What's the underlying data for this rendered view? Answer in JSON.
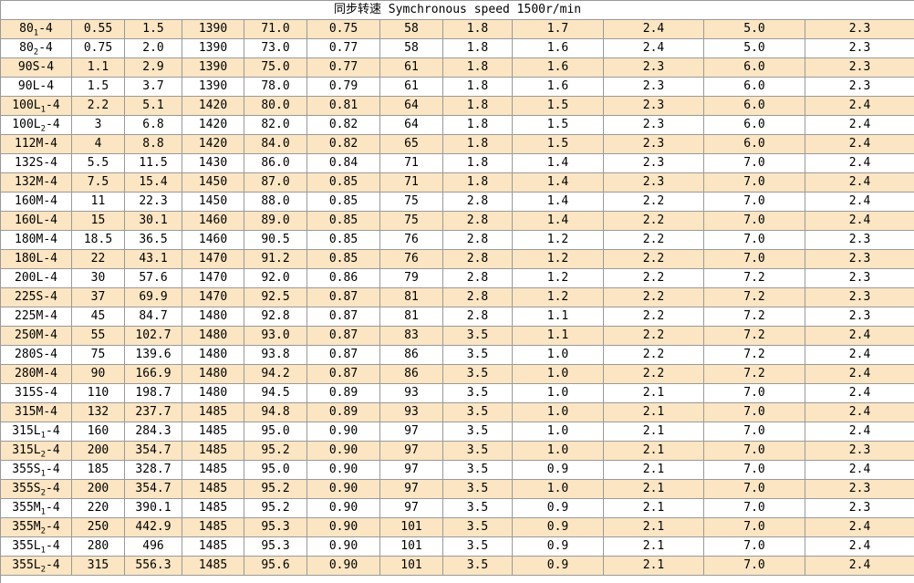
{
  "title": "同步转速 Symchronous speed 1500r/min",
  "colors": {
    "row_highlight": "#fbe5c2",
    "row_plain": "#ffffff",
    "grid_border": "#9a9a9a",
    "text": "#000000"
  },
  "table": {
    "rows": [
      {
        "model": {
          "base": "80",
          "sub": "1",
          "rest": "-4"
        },
        "values": [
          "0.55",
          "1.5",
          "1390",
          "71.0",
          "0.75",
          "58",
          "1.8",
          "1.7",
          "2.4",
          "5.0",
          "2.3"
        ]
      },
      {
        "model": {
          "base": "80",
          "sub": "2",
          "rest": "-4"
        },
        "values": [
          "0.75",
          "2.0",
          "1390",
          "73.0",
          "0.77",
          "58",
          "1.8",
          "1.6",
          "2.4",
          "5.0",
          "2.3"
        ]
      },
      {
        "model": {
          "base": "90S",
          "sub": "",
          "rest": "-4"
        },
        "values": [
          "1.1",
          "2.9",
          "1390",
          "75.0",
          "0.77",
          "61",
          "1.8",
          "1.6",
          "2.3",
          "6.0",
          "2.3"
        ]
      },
      {
        "model": {
          "base": "90L",
          "sub": "",
          "rest": "-4"
        },
        "values": [
          "1.5",
          "3.7",
          "1390",
          "78.0",
          "0.79",
          "61",
          "1.8",
          "1.6",
          "2.3",
          "6.0",
          "2.3"
        ]
      },
      {
        "model": {
          "base": "100L",
          "sub": "1",
          "rest": "-4"
        },
        "values": [
          "2.2",
          "5.1",
          "1420",
          "80.0",
          "0.81",
          "64",
          "1.8",
          "1.5",
          "2.3",
          "6.0",
          "2.4"
        ]
      },
      {
        "model": {
          "base": "100L",
          "sub": "2",
          "rest": "-4"
        },
        "values": [
          "3",
          "6.8",
          "1420",
          "82.0",
          "0.82",
          "64",
          "1.8",
          "1.5",
          "2.3",
          "6.0",
          "2.4"
        ]
      },
      {
        "model": {
          "base": "112M",
          "sub": "",
          "rest": "-4"
        },
        "values": [
          "4",
          "8.8",
          "1420",
          "84.0",
          "0.82",
          "65",
          "1.8",
          "1.5",
          "2.3",
          "6.0",
          "2.4"
        ]
      },
      {
        "model": {
          "base": "132S",
          "sub": "",
          "rest": "-4"
        },
        "values": [
          "5.5",
          "11.5",
          "1430",
          "86.0",
          "0.84",
          "71",
          "1.8",
          "1.4",
          "2.3",
          "7.0",
          "2.4"
        ]
      },
      {
        "model": {
          "base": "132M",
          "sub": "",
          "rest": "-4"
        },
        "values": [
          "7.5",
          "15.4",
          "1450",
          "87.0",
          "0.85",
          "71",
          "1.8",
          "1.4",
          "2.3",
          "7.0",
          "2.4"
        ]
      },
      {
        "model": {
          "base": "160M",
          "sub": "",
          "rest": "-4"
        },
        "values": [
          "11",
          "22.3",
          "1450",
          "88.0",
          "0.85",
          "75",
          "2.8",
          "1.4",
          "2.2",
          "7.0",
          "2.4"
        ]
      },
      {
        "model": {
          "base": "160L",
          "sub": "",
          "rest": "-4"
        },
        "values": [
          "15",
          "30.1",
          "1460",
          "89.0",
          "0.85",
          "75",
          "2.8",
          "1.4",
          "2.2",
          "7.0",
          "2.4"
        ]
      },
      {
        "model": {
          "base": "180M",
          "sub": "",
          "rest": "-4"
        },
        "values": [
          "18.5",
          "36.5",
          "1460",
          "90.5",
          "0.85",
          "76",
          "2.8",
          "1.2",
          "2.2",
          "7.0",
          "2.3"
        ]
      },
      {
        "model": {
          "base": "180L",
          "sub": "",
          "rest": "-4"
        },
        "values": [
          "22",
          "43.1",
          "1470",
          "91.2",
          "0.85",
          "76",
          "2.8",
          "1.2",
          "2.2",
          "7.0",
          "2.3"
        ]
      },
      {
        "model": {
          "base": "200L",
          "sub": "",
          "rest": "-4"
        },
        "values": [
          "30",
          "57.6",
          "1470",
          "92.0",
          "0.86",
          "79",
          "2.8",
          "1.2",
          "2.2",
          "7.2",
          "2.3"
        ]
      },
      {
        "model": {
          "base": "225S",
          "sub": "",
          "rest": "-4"
        },
        "values": [
          "37",
          "69.9",
          "1470",
          "92.5",
          "0.87",
          "81",
          "2.8",
          "1.2",
          "2.2",
          "7.2",
          "2.3"
        ]
      },
      {
        "model": {
          "base": "225M",
          "sub": "",
          "rest": "-4"
        },
        "values": [
          "45",
          "84.7",
          "1480",
          "92.8",
          "0.87",
          "81",
          "2.8",
          "1.1",
          "2.2",
          "7.2",
          "2.3"
        ]
      },
      {
        "model": {
          "base": "250M",
          "sub": "",
          "rest": "-4"
        },
        "values": [
          "55",
          "102.7",
          "1480",
          "93.0",
          "0.87",
          "83",
          "3.5",
          "1.1",
          "2.2",
          "7.2",
          "2.4"
        ]
      },
      {
        "model": {
          "base": "280S",
          "sub": "",
          "rest": "-4"
        },
        "values": [
          "75",
          "139.6",
          "1480",
          "93.8",
          "0.87",
          "86",
          "3.5",
          "1.0",
          "2.2",
          "7.2",
          "2.4"
        ]
      },
      {
        "model": {
          "base": "280M",
          "sub": "",
          "rest": "-4"
        },
        "values": [
          "90",
          "166.9",
          "1480",
          "94.2",
          "0.87",
          "86",
          "3.5",
          "1.0",
          "2.2",
          "7.2",
          "2.4"
        ]
      },
      {
        "model": {
          "base": "315S",
          "sub": "",
          "rest": "-4"
        },
        "values": [
          "110",
          "198.7",
          "1480",
          "94.5",
          "0.89",
          "93",
          "3.5",
          "1.0",
          "2.1",
          "7.0",
          "2.4"
        ]
      },
      {
        "model": {
          "base": "315M",
          "sub": "",
          "rest": "-4"
        },
        "values": [
          "132",
          "237.7",
          "1485",
          "94.8",
          "0.89",
          "93",
          "3.5",
          "1.0",
          "2.1",
          "7.0",
          "2.4"
        ]
      },
      {
        "model": {
          "base": "315L",
          "sub": "1",
          "rest": "-4"
        },
        "values": [
          "160",
          "284.3",
          "1485",
          "95.0",
          "0.90",
          "97",
          "3.5",
          "1.0",
          "2.1",
          "7.0",
          "2.4"
        ]
      },
      {
        "model": {
          "base": "315L",
          "sub": "2",
          "rest": "-4"
        },
        "values": [
          "200",
          "354.7",
          "1485",
          "95.2",
          "0.90",
          "97",
          "3.5",
          "1.0",
          "2.1",
          "7.0",
          "2.3"
        ]
      },
      {
        "model": {
          "base": "355S",
          "sub": "1",
          "rest": "-4"
        },
        "values": [
          "185",
          "328.7",
          "1485",
          "95.0",
          "0.90",
          "97",
          "3.5",
          "0.9",
          "2.1",
          "7.0",
          "2.4"
        ]
      },
      {
        "model": {
          "base": "355S",
          "sub": "2",
          "rest": "-4"
        },
        "values": [
          "200",
          "354.7",
          "1485",
          "95.2",
          "0.90",
          "97",
          "3.5",
          "1.0",
          "2.1",
          "7.0",
          "2.3"
        ]
      },
      {
        "model": {
          "base": "355M",
          "sub": "1",
          "rest": "-4"
        },
        "values": [
          "220",
          "390.1",
          "1485",
          "95.2",
          "0.90",
          "97",
          "3.5",
          "0.9",
          "2.1",
          "7.0",
          "2.3"
        ]
      },
      {
        "model": {
          "base": "355M",
          "sub": "2",
          "rest": "-4"
        },
        "values": [
          "250",
          "442.9",
          "1485",
          "95.3",
          "0.90",
          "101",
          "3.5",
          "0.9",
          "2.1",
          "7.0",
          "2.4"
        ]
      },
      {
        "model": {
          "base": "355L",
          "sub": "1",
          "rest": "-4"
        },
        "values": [
          "280",
          "496",
          "1485",
          "95.3",
          "0.90",
          "101",
          "3.5",
          "0.9",
          "2.1",
          "7.0",
          "2.4"
        ]
      },
      {
        "model": {
          "base": "355L",
          "sub": "2",
          "rest": "-4"
        },
        "values": [
          "315",
          "556.3",
          "1485",
          "95.6",
          "0.90",
          "101",
          "3.5",
          "0.9",
          "2.1",
          "7.0",
          "2.4"
        ]
      }
    ]
  }
}
